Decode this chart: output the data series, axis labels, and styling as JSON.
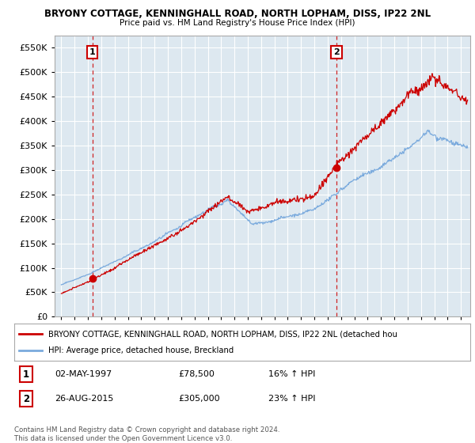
{
  "title_line1": "BRYONY COTTAGE, KENNINGHALL ROAD, NORTH LOPHAM, DISS, IP22 2NL",
  "title_line2": "Price paid vs. HM Land Registry's House Price Index (HPI)",
  "yticks": [
    0,
    50000,
    100000,
    150000,
    200000,
    250000,
    300000,
    350000,
    400000,
    450000,
    500000,
    550000
  ],
  "ylim": [
    0,
    575000
  ],
  "xlim_start": 1994.5,
  "xlim_end": 2025.7,
  "sale1_x": 1997.33,
  "sale1_y": 78500,
  "sale1_label": "1",
  "sale1_date": "02-MAY-1997",
  "sale1_price": "£78,500",
  "sale1_hpi": "16% ↑ HPI",
  "sale2_x": 2015.65,
  "sale2_y": 305000,
  "sale2_label": "2",
  "sale2_date": "26-AUG-2015",
  "sale2_price": "£305,000",
  "sale2_hpi": "23% ↑ HPI",
  "house_color": "#cc0000",
  "hpi_color": "#7aaadd",
  "vline_color": "#cc0000",
  "chart_bg": "#dde8f0",
  "background_color": "#ffffff",
  "grid_color": "#ffffff",
  "legend_house": "BRYONY COTTAGE, KENNINGHALL ROAD, NORTH LOPHAM, DISS, IP22 2NL (detached hou",
  "legend_hpi": "HPI: Average price, detached house, Breckland",
  "footnote": "Contains HM Land Registry data © Crown copyright and database right 2024.\nThis data is licensed under the Open Government Licence v3.0."
}
